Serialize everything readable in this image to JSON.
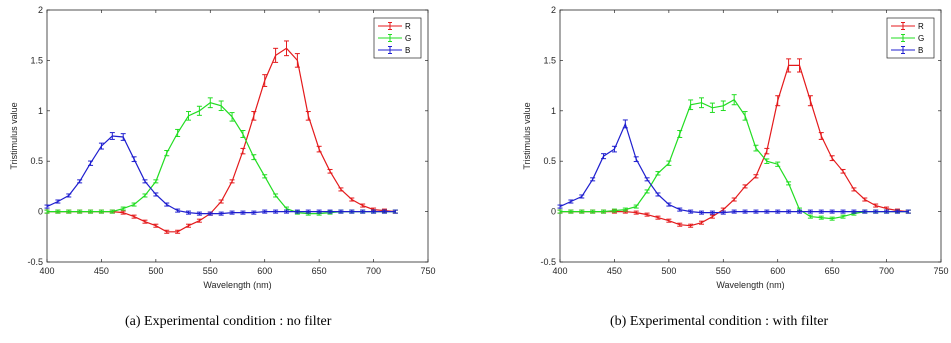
{
  "chart_data": [
    {
      "type": "line",
      "caption": "(a) Experimental condition : no filter",
      "xlabel": "Wavelength (nm)",
      "ylabel": "Tristimulus value",
      "xlim": [
        400,
        750
      ],
      "ylim": [
        -0.5,
        2
      ],
      "xticks": [
        "400",
        "450",
        "500",
        "550",
        "600",
        "650",
        "700",
        "750"
      ],
      "yticks": [
        "-0.5",
        "0",
        "0.5",
        "1",
        "1.5",
        "2"
      ],
      "error_bars": true,
      "legend_position": "top-right",
      "x": [
        400,
        410,
        420,
        430,
        440,
        450,
        460,
        470,
        480,
        490,
        500,
        510,
        520,
        530,
        540,
        550,
        560,
        570,
        580,
        590,
        600,
        610,
        620,
        630,
        640,
        650,
        660,
        670,
        680,
        690,
        700,
        710,
        720
      ],
      "series": [
        {
          "name": "R",
          "color": "#e41a1c",
          "values": [
            0,
            0,
            0,
            0,
            0,
            0,
            0,
            -0.01,
            -0.05,
            -0.1,
            -0.14,
            -0.2,
            -0.2,
            -0.14,
            -0.09,
            -0.02,
            0.1,
            0.3,
            0.6,
            0.95,
            1.3,
            1.55,
            1.62,
            1.5,
            0.95,
            0.62,
            0.4,
            0.22,
            0.12,
            0.06,
            0.02,
            0.01,
            0
          ]
        },
        {
          "name": "G",
          "color": "#22dd22",
          "values": [
            0,
            0,
            0,
            0,
            0,
            0,
            0,
            0.03,
            0.07,
            0.16,
            0.3,
            0.58,
            0.78,
            0.95,
            1.0,
            1.08,
            1.05,
            0.94,
            0.77,
            0.54,
            0.35,
            0.16,
            0.03,
            -0.01,
            -0.02,
            -0.02,
            -0.01,
            0,
            0,
            0,
            0,
            0,
            0
          ]
        },
        {
          "name": "B",
          "color": "#1f1fcf",
          "values": [
            0.05,
            0.1,
            0.16,
            0.3,
            0.48,
            0.65,
            0.75,
            0.74,
            0.52,
            0.3,
            0.17,
            0.07,
            0.01,
            -0.01,
            -0.02,
            -0.02,
            -0.02,
            -0.01,
            -0.01,
            -0.01,
            0,
            0,
            0,
            0,
            0,
            0,
            0,
            0,
            0,
            0,
            0,
            0,
            0
          ]
        }
      ]
    },
    {
      "type": "line",
      "caption": "(b) Experimental condition : with filter",
      "xlabel": "Wavelength (nm)",
      "ylabel": "Tristimulus value",
      "xlim": [
        400,
        750
      ],
      "ylim": [
        -0.5,
        2
      ],
      "xticks": [
        "400",
        "450",
        "500",
        "550",
        "600",
        "650",
        "700",
        "750"
      ],
      "yticks": [
        "-0.5",
        "0",
        "0.5",
        "1",
        "1.5",
        "2"
      ],
      "error_bars": true,
      "legend_position": "top-right",
      "x": [
        400,
        410,
        420,
        430,
        440,
        450,
        460,
        470,
        480,
        490,
        500,
        510,
        520,
        530,
        540,
        550,
        560,
        570,
        580,
        590,
        600,
        610,
        620,
        630,
        640,
        650,
        660,
        670,
        680,
        690,
        700,
        710,
        720
      ],
      "series": [
        {
          "name": "R",
          "color": "#e41a1c",
          "values": [
            0,
            0,
            0,
            0,
            0,
            0,
            0,
            -0.01,
            -0.03,
            -0.06,
            -0.09,
            -0.13,
            -0.14,
            -0.11,
            -0.05,
            0.02,
            0.12,
            0.25,
            0.35,
            0.6,
            1.1,
            1.45,
            1.45,
            1.1,
            0.75,
            0.53,
            0.4,
            0.22,
            0.12,
            0.06,
            0.03,
            0.01,
            0
          ]
        },
        {
          "name": "G",
          "color": "#22dd22",
          "values": [
            0,
            0,
            0,
            0,
            0,
            0.01,
            0.02,
            0.05,
            0.2,
            0.38,
            0.48,
            0.77,
            1.06,
            1.08,
            1.03,
            1.05,
            1.11,
            0.95,
            0.63,
            0.5,
            0.47,
            0.28,
            0.02,
            -0.05,
            -0.06,
            -0.07,
            -0.05,
            -0.02,
            0,
            0,
            0,
            0,
            0
          ]
        },
        {
          "name": "B",
          "color": "#1f1fcf",
          "values": [
            0.05,
            0.1,
            0.15,
            0.32,
            0.55,
            0.62,
            0.87,
            0.52,
            0.32,
            0.17,
            0.07,
            0.02,
            0,
            -0.01,
            -0.01,
            -0.01,
            0,
            0,
            0,
            0,
            0,
            0,
            0,
            0,
            0,
            0,
            0,
            0,
            0,
            0,
            0,
            0,
            0
          ]
        }
      ]
    }
  ]
}
